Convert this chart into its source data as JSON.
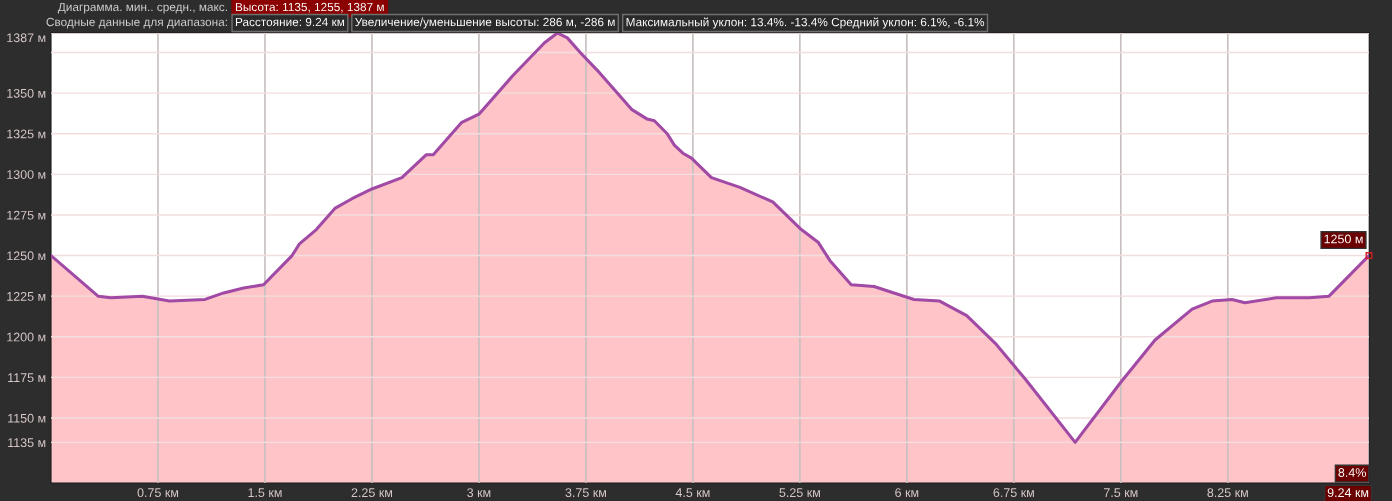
{
  "chart_data": {
    "type": "area",
    "title": "Диаграмма. мин.. средн., макс.",
    "subtitle": "Сводные данные для диапазона:",
    "annotations": [
      "Высота: 1135, 1255, 1387 м",
      "Расстояние: 9.24 км",
      "Увеличение/уменьшение высоты: 286 м, -286 м",
      "Максимальный уклон: 13.4%. -13.4% Средний уклон: 6.1%, -6.1%",
      {
        "text": "1250 м",
        "x": 9.24,
        "y": 1250
      },
      "8.4%"
    ],
    "x": [
      0,
      0.33,
      0.42,
      0.64,
      0.83,
      1.08,
      1.21,
      1.35,
      1.49,
      1.69,
      1.74,
      1.86,
      1.99,
      2.11,
      2.25,
      2.46,
      2.63,
      2.68,
      2.88,
      3.0,
      3.24,
      3.46,
      3.55,
      3.62,
      3.71,
      3.83,
      4.07,
      4.18,
      4.23,
      4.32,
      4.37,
      4.43,
      4.49,
      4.63,
      4.83,
      5.06,
      5.26,
      5.38,
      5.46,
      5.61,
      5.77,
      6.05,
      6.23,
      6.42,
      6.62,
      6.83,
      7.18,
      7.5,
      7.74,
      8.0,
      8.14,
      8.28,
      8.37,
      8.59,
      8.82,
      8.96,
      9.24
    ],
    "series": [
      {
        "color": "#a04aa6",
        "values": [
          1250,
          1225,
          1224,
          1225,
          1222,
          1223,
          1227,
          1230,
          1232,
          1250,
          1257,
          1266,
          1279,
          1285,
          1291,
          1298,
          1312,
          1312,
          1332,
          1337,
          1361,
          1381,
          1387,
          1384,
          1375,
          1364,
          1340,
          1334,
          1333,
          1325,
          1318,
          1313,
          1310,
          1298,
          1292,
          1283,
          1266,
          1258,
          1247,
          1232,
          1231,
          1223,
          1222,
          1213,
          1196,
          1174,
          1135,
          1172,
          1198,
          1217,
          1222,
          1223,
          1221,
          1224,
          1224,
          1225,
          1250
        ]
      }
    ],
    "xlim": [
      0,
      9.24
    ],
    "xticks": [
      {
        "value": 0.75,
        "label": "0.75 км"
      },
      {
        "value": 1.5,
        "label": "1.5 км"
      },
      {
        "value": 2.25,
        "label": "2.25 км"
      },
      {
        "value": 3,
        "label": "3 км"
      },
      {
        "value": 3.75,
        "label": "3.75 км"
      },
      {
        "value": 4.5,
        "label": "4.5 км"
      },
      {
        "value": 5.25,
        "label": "5.25 км"
      },
      {
        "value": 6,
        "label": "6 км"
      },
      {
        "value": 6.75,
        "label": "6.75 км"
      },
      {
        "value": 7.5,
        "label": "7.5 км"
      },
      {
        "value": 8.25,
        "label": "8.25 км"
      },
      {
        "value": 9.24,
        "label": "9.24 км"
      }
    ],
    "ylim": [
      1110,
      1387
    ],
    "yticks": [
      {
        "value": 1135,
        "label": "1135 м"
      },
      {
        "value": 1150,
        "label": "1150 м"
      },
      {
        "value": 1175,
        "label": "1175 м"
      },
      {
        "value": 1200,
        "label": "1200 м"
      },
      {
        "value": 1225,
        "label": "1225 м"
      },
      {
        "value": 1250,
        "label": "1250 м"
      },
      {
        "value": 1275,
        "label": "1275 м"
      },
      {
        "value": 1300,
        "label": "1300 м"
      },
      {
        "value": 1325,
        "label": "1325 м"
      },
      {
        "value": 1350,
        "label": "1350 м"
      },
      {
        "value": 1375,
        "label": null
      },
      {
        "value": 1387,
        "label": "1387 м"
      }
    ],
    "grid": true
  }
}
